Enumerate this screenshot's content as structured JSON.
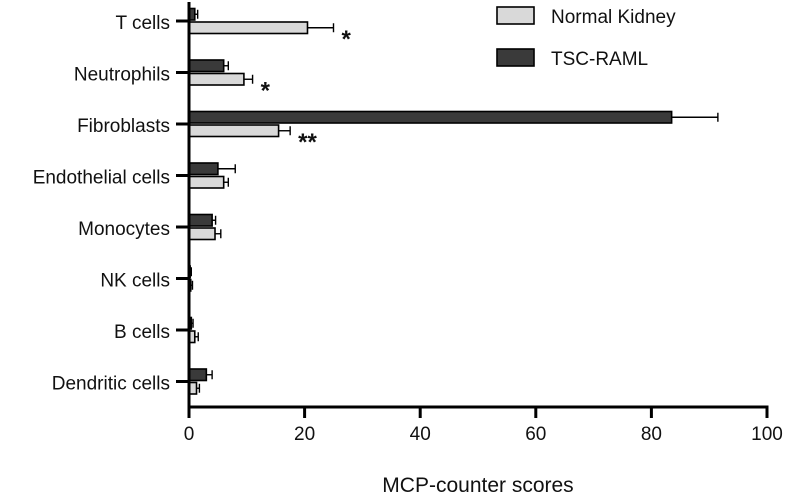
{
  "chart_data": {
    "type": "bar",
    "orientation": "horizontal",
    "categories": [
      "T cells",
      "Neutrophils",
      "Fibroblasts",
      "Endothelial cells",
      "Monocytes",
      "NK cells",
      "B cells",
      "Dendritic cells"
    ],
    "series": [
      {
        "name": "TSC-RAML",
        "color": "#3a3a3a",
        "values": [
          1.0,
          6.0,
          83.5,
          5.0,
          4.0,
          0.2,
          0.4,
          3.0
        ],
        "errors": [
          0.5,
          0.8,
          8.0,
          3.0,
          0.6,
          0.2,
          0.3,
          1.0
        ]
      },
      {
        "name": "Normal Kidney",
        "color": "#d9d9d9",
        "values": [
          20.5,
          9.5,
          15.5,
          6.0,
          4.5,
          0.3,
          1.0,
          1.3
        ],
        "errors": [
          4.5,
          1.5,
          2.0,
          0.8,
          1.0,
          0.3,
          0.6,
          0.5
        ]
      }
    ],
    "significance": [
      "*",
      "*",
      "**",
      "",
      "",
      "",
      "",
      ""
    ],
    "xlabel": "MCP-counter scores",
    "ylabel": "",
    "xlim": [
      0,
      100
    ],
    "xticks": [
      0,
      20,
      40,
      60,
      80,
      100
    ],
    "legend": [
      {
        "label": "Normal Kidney",
        "color": "#d9d9d9"
      },
      {
        "label": "TSC-RAML",
        "color": "#3a3a3a"
      }
    ],
    "legend_position": "top-right"
  }
}
